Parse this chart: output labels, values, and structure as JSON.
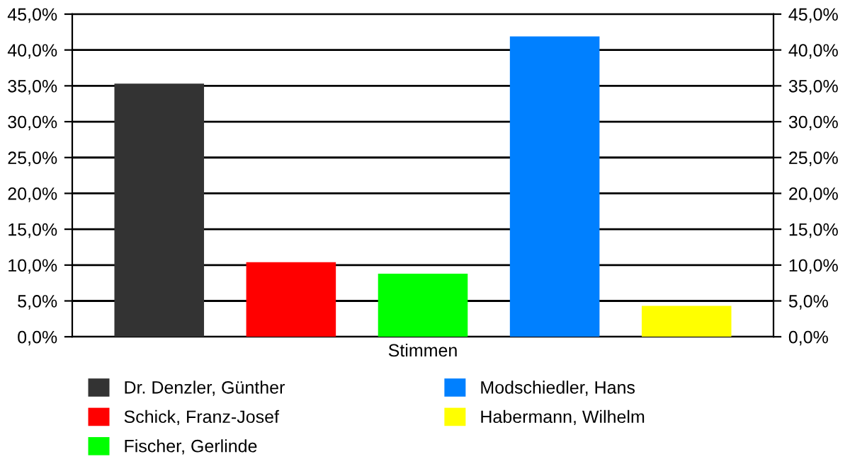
{
  "chart_data": {
    "type": "bar",
    "categories": [
      "Stimmen"
    ],
    "series": [
      {
        "name": "Dr. Denzler, Günther",
        "color": "#333333",
        "values": [
          35.3
        ]
      },
      {
        "name": "Schick, Franz-Josef",
        "color": "#ff0000",
        "values": [
          10.4
        ]
      },
      {
        "name": "Fischer, Gerlinde",
        "color": "#00ff00",
        "values": [
          8.8
        ]
      },
      {
        "name": "Modschiedler, Hans",
        "color": "#0080ff",
        "values": [
          41.9
        ]
      },
      {
        "name": "Habermann, Wilhelm",
        "color": "#ffff00",
        "values": [
          4.3
        ]
      }
    ],
    "ylim": [
      0,
      45
    ],
    "yticks": [
      {
        "value": 0,
        "label": "0,0%"
      },
      {
        "value": 5,
        "label": "5,0%"
      },
      {
        "value": 10,
        "label": "10,0%"
      },
      {
        "value": 15,
        "label": "15,0%"
      },
      {
        "value": 20,
        "label": "20,0%"
      },
      {
        "value": 25,
        "label": "25,0%"
      },
      {
        "value": 30,
        "label": "30,0%"
      },
      {
        "value": 35,
        "label": "35,0%"
      },
      {
        "value": 40,
        "label": "40,0%"
      },
      {
        "value": 45,
        "label": "45,0%"
      }
    ],
    "grid": "y",
    "legend": "bottom"
  }
}
